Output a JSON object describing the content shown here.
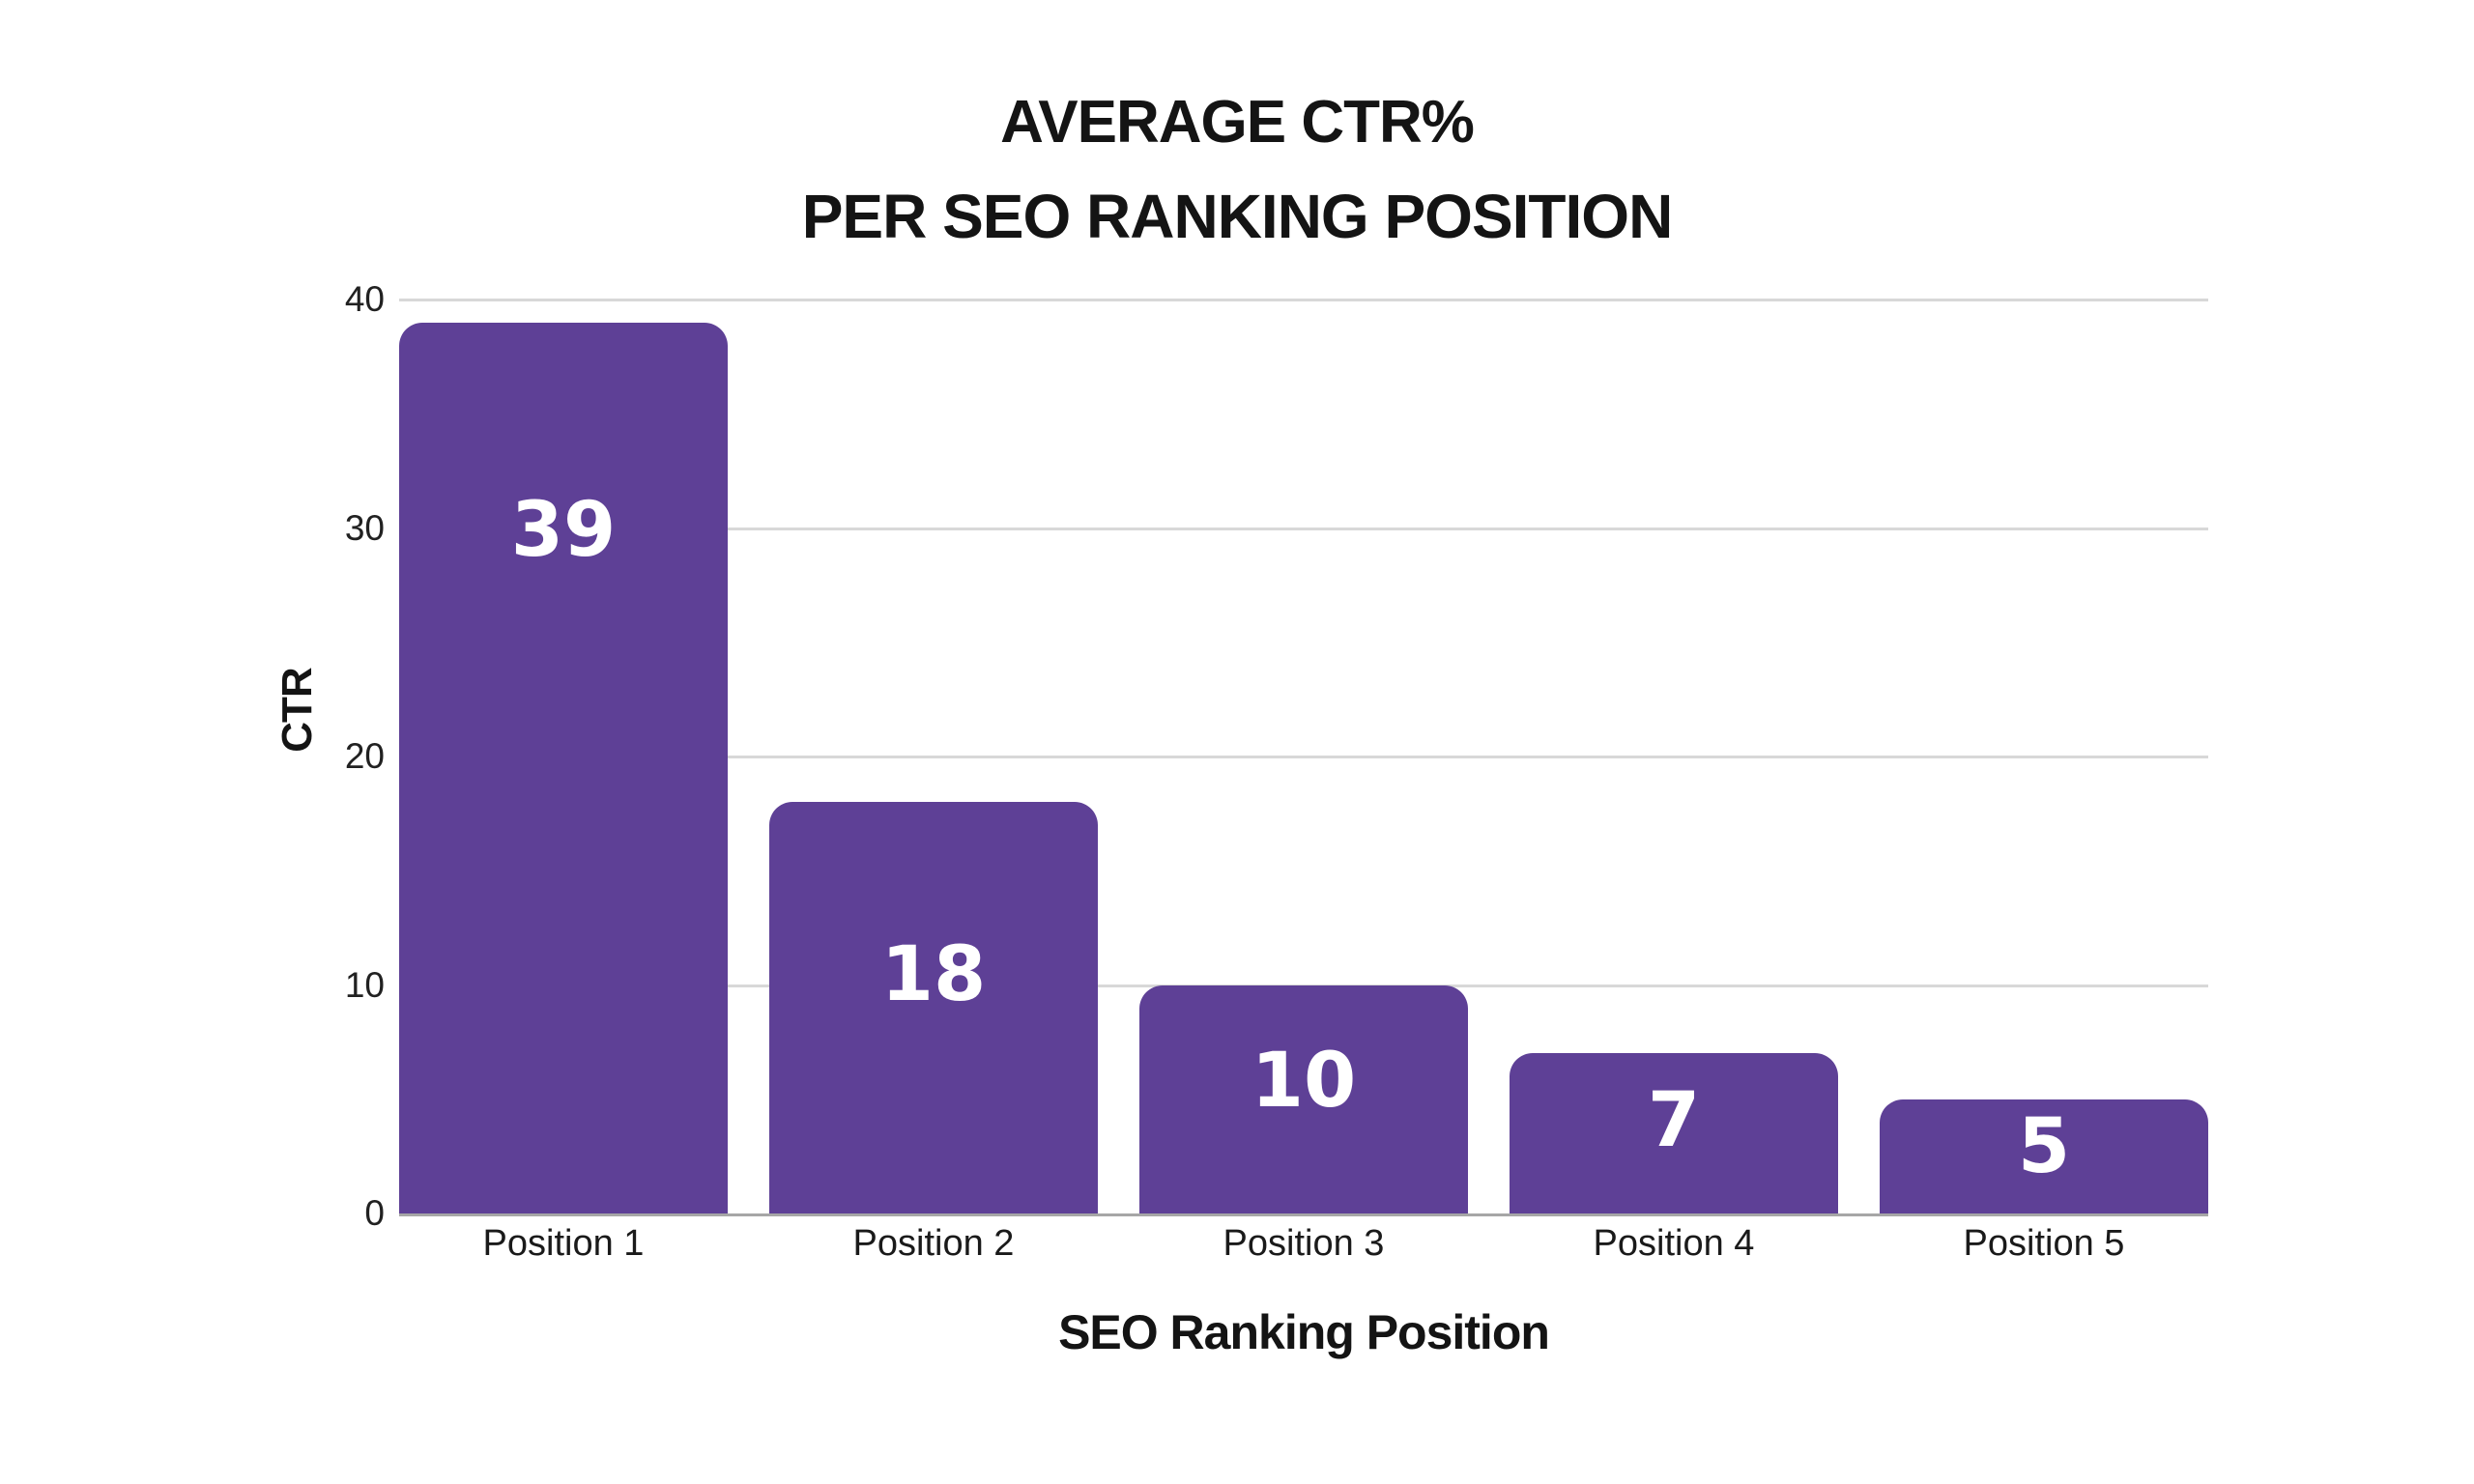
{
  "chart_data": {
    "type": "bar",
    "title": "AVERAGE CTR% PER SEO RANKING POSITION",
    "title_lines": [
      "AVERAGE CTR%",
      "PER SEO RANKING POSITION"
    ],
    "xlabel": "SEO Ranking Position",
    "ylabel": "CTR",
    "categories": [
      "Position 1",
      "Position 2",
      "Position 3",
      "Position 4",
      "Position 5"
    ],
    "values": [
      39,
      18,
      10,
      7,
      5
    ],
    "bar_labels": [
      "39",
      "18",
      "10",
      "7",
      "5"
    ],
    "y_ticks": [
      0,
      10,
      20,
      30,
      40
    ],
    "ylim": [
      0,
      40
    ],
    "grid": "horizontal",
    "legend_position": "none",
    "colors": {
      "bar_fill": "#5E4096",
      "bar_label_text": "#FFFFFF",
      "gridline": "#D8D8D8",
      "axis_line": "#A6A6A6",
      "text": "#141414",
      "background": "#FFFFFF"
    }
  }
}
